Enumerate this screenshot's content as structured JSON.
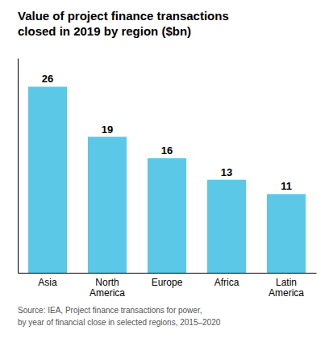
{
  "chart_data": {
    "type": "bar",
    "title": "Value of project finance transactions\nclosed in 2019 by region ($bn)",
    "categories": [
      "Asia",
      "North\nAmerica",
      "Europe",
      "Africa",
      "Latin\nAmerica"
    ],
    "values": [
      26,
      19,
      16,
      13,
      11
    ],
    "color": "#5BC8E8",
    "ylim": [
      0,
      30
    ],
    "data_labels": true,
    "tick_labels": "x",
    "grid": false,
    "annotations": [
      "Source: IEA, Project finance transactions for power,\nby year of financial close in selected regions, 2015–2020"
    ]
  }
}
